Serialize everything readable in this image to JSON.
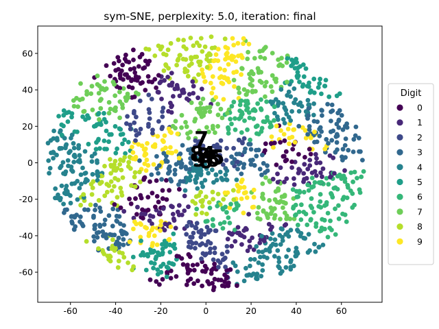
{
  "chart_data": {
    "type": "scatter",
    "title": "sym-SNE, perplexity: 5.0, iteration: final",
    "xlabel": "",
    "ylabel": "",
    "xlim": [
      -74.5,
      78
    ],
    "ylim": [
      -76.5,
      75
    ],
    "x_ticks": [
      -60,
      -40,
      -20,
      0,
      20,
      40,
      60
    ],
    "y_ticks": [
      -60,
      -40,
      -20,
      0,
      20,
      40,
      60
    ],
    "grid": false,
    "legend": {
      "title": "Digit",
      "placement": "center-right outside",
      "entries": [
        "0",
        "1",
        "2",
        "3",
        "4",
        "5",
        "6",
        "7",
        "8",
        "9"
      ]
    },
    "palette": [
      "#440154",
      "#482878",
      "#3e4989",
      "#31688e",
      "#26828e",
      "#1f9e89",
      "#35b779",
      "#6ece58",
      "#b5de2b",
      "#fde725"
    ],
    "cloud": {
      "center": [
        0,
        0
      ],
      "x_radius": 70,
      "y_radius": 69,
      "point_count": 1800
    },
    "clusters": [
      {
        "label": 0,
        "x": 37,
        "y": 8
      },
      {
        "label": 0,
        "x": -24,
        "y": -20
      },
      {
        "label": 0,
        "x": -33,
        "y": 44
      },
      {
        "label": 0,
        "x": -8,
        "y": -58
      },
      {
        "label": 1,
        "x": 40,
        "y": -5
      },
      {
        "label": 1,
        "x": -11,
        "y": 38
      },
      {
        "label": 1,
        "x": -20,
        "y": -28
      },
      {
        "label": 1,
        "x": 18,
        "y": -38
      },
      {
        "label": 2,
        "x": -28,
        "y": 25
      },
      {
        "label": 2,
        "x": 8,
        "y": 5
      },
      {
        "label": 2,
        "x": 0,
        "y": -45
      },
      {
        "label": 3,
        "x": -15,
        "y": 2
      },
      {
        "label": 3,
        "x": 18,
        "y": 2
      },
      {
        "label": 3,
        "x": -42,
        "y": -40
      },
      {
        "label": 3,
        "x": 50,
        "y": 20
      },
      {
        "label": 4,
        "x": 2,
        "y": -8
      },
      {
        "label": 4,
        "x": 38,
        "y": 30
      },
      {
        "label": 4,
        "x": -55,
        "y": 0
      },
      {
        "label": 4,
        "x": 30,
        "y": -50
      },
      {
        "label": 5,
        "x": -20,
        "y": -50
      },
      {
        "label": 5,
        "x": 50,
        "y": 45
      },
      {
        "label": 5,
        "x": -45,
        "y": 15
      },
      {
        "label": 6,
        "x": 20,
        "y": 25
      },
      {
        "label": 6,
        "x": 48,
        "y": -20
      },
      {
        "label": 6,
        "x": 10,
        "y": -28
      },
      {
        "label": 7,
        "x": -3,
        "y": 25
      },
      {
        "label": 7,
        "x": -40,
        "y": 35
      },
      {
        "label": 7,
        "x": 28,
        "y": -20
      },
      {
        "label": 7,
        "x": 20,
        "y": 45
      },
      {
        "label": 8,
        "x": -40,
        "y": -8
      },
      {
        "label": 8,
        "x": 5,
        "y": -18
      },
      {
        "label": 8,
        "x": -8,
        "y": 55
      },
      {
        "label": 8,
        "x": -45,
        "y": -50
      },
      {
        "label": 9,
        "x": -20,
        "y": 5
      },
      {
        "label": 9,
        "x": 8,
        "y": 48
      },
      {
        "label": 9,
        "x": -25,
        "y": -40
      },
      {
        "label": 9,
        "x": 15,
        "y": -20
      },
      {
        "label": 9,
        "x": 40,
        "y": 15
      }
    ],
    "annotations": [
      {
        "text": "7",
        "x": -2,
        "y": 9
      },
      {
        "text": "8",
        "x": -4,
        "y": 1
      },
      {
        "text": "4",
        "x": 1,
        "y": 1
      },
      {
        "text": "6",
        "x": 3,
        "y": -2
      },
      {
        "text": "5",
        "x": 5,
        "y": -1
      },
      {
        "text": "0",
        "x": 0,
        "y": -3
      },
      {
        "text": "2",
        "x": -1,
        "y": 0
      },
      {
        "text": "9",
        "x": -3,
        "y": -2
      }
    ]
  }
}
